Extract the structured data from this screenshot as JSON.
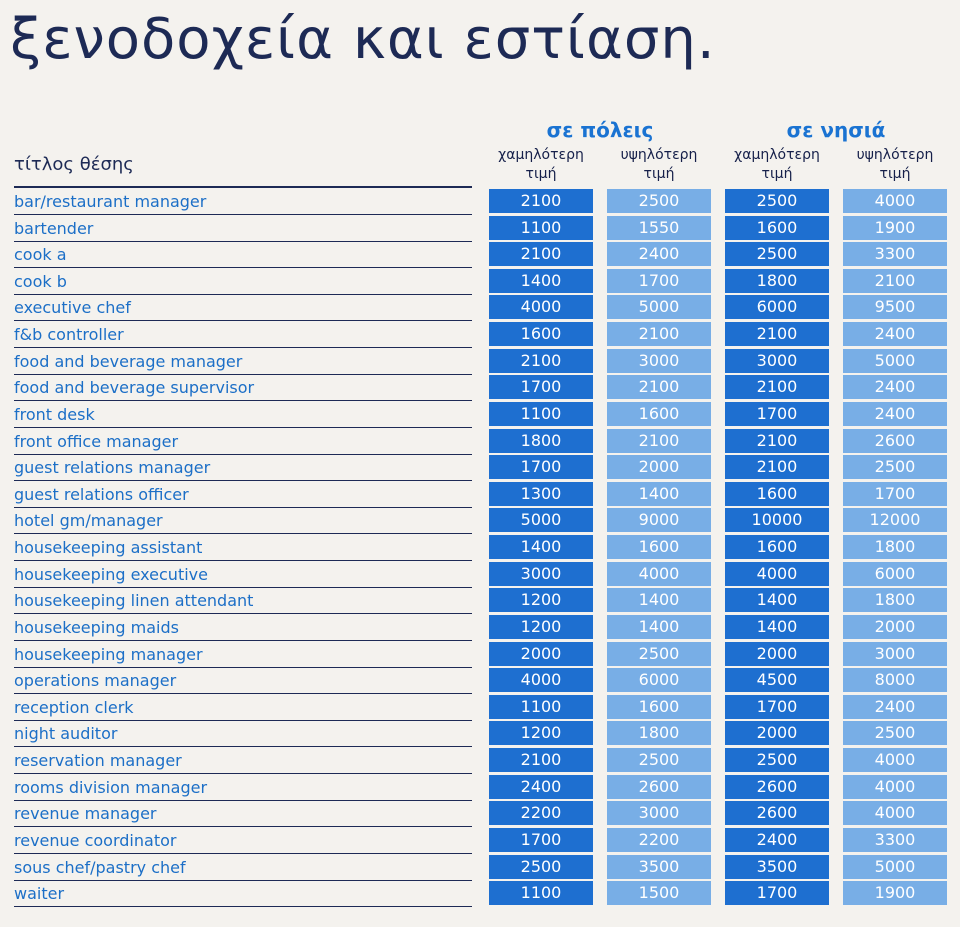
{
  "title": "ξενοδοχεία και εστίαση.",
  "table": {
    "label_header": "τίτλος θέσης",
    "groups": [
      {
        "label": "σε πόλεις"
      },
      {
        "label": "σε νησιά"
      }
    ],
    "columns": [
      {
        "line1": "χαμηλότερη",
        "line2": "τιμή"
      },
      {
        "line1": "υψηλότερη",
        "line2": "τιμή"
      },
      {
        "line1": "χαμηλότερη",
        "line2": "τιμή"
      },
      {
        "line1": "υψηλότερη",
        "line2": "τιμή"
      }
    ],
    "rows": [
      {
        "title": "bar/restaurant manager",
        "values": [
          "2100",
          "2500",
          "2500",
          "4000"
        ]
      },
      {
        "title": "bartender",
        "values": [
          "1100",
          "1550",
          "1600",
          "1900"
        ]
      },
      {
        "title": "cook a",
        "values": [
          "2100",
          "2400",
          "2500",
          "3300"
        ]
      },
      {
        "title": "cook b",
        "values": [
          "1400",
          "1700",
          "1800",
          "2100"
        ]
      },
      {
        "title": "executive chef",
        "values": [
          "4000",
          "5000",
          "6000",
          "9500"
        ]
      },
      {
        "title": "f&b controller",
        "values": [
          "1600",
          "2100",
          "2100",
          "2400"
        ]
      },
      {
        "title": "food and beverage manager",
        "values": [
          "2100",
          "3000",
          "3000",
          "5000"
        ]
      },
      {
        "title": "food and beverage supervisor",
        "values": [
          "1700",
          "2100",
          "2100",
          "2400"
        ]
      },
      {
        "title": "front desk",
        "values": [
          "1100",
          "1600",
          "1700",
          "2400"
        ]
      },
      {
        "title": "front office manager",
        "values": [
          "1800",
          "2100",
          "2100",
          "2600"
        ]
      },
      {
        "title": "guest relations manager",
        "values": [
          "1700",
          "2000",
          "2100",
          "2500"
        ]
      },
      {
        "title": "guest relations officer",
        "values": [
          "1300",
          "1400",
          "1600",
          "1700"
        ]
      },
      {
        "title": "hotel gm/manager",
        "values": [
          "5000",
          "9000",
          "10000",
          "12000"
        ]
      },
      {
        "title": "housekeeping assistant",
        "values": [
          "1400",
          "1600",
          "1600",
          "1800"
        ]
      },
      {
        "title": "housekeeping executive",
        "values": [
          "3000",
          "4000",
          "4000",
          "6000"
        ]
      },
      {
        "title": "housekeeping linen attendant",
        "values": [
          "1200",
          "1400",
          "1400",
          "1800"
        ]
      },
      {
        "title": "housekeeping maids",
        "values": [
          "1200",
          "1400",
          "1400",
          "2000"
        ]
      },
      {
        "title": "housekeeping manager",
        "values": [
          "2000",
          "2500",
          "2000",
          "3000"
        ]
      },
      {
        "title": "operations manager",
        "values": [
          "4000",
          "6000",
          "4500",
          "8000"
        ]
      },
      {
        "title": "reception clerk",
        "values": [
          "1100",
          "1600",
          "1700",
          "2400"
        ]
      },
      {
        "title": "night auditor",
        "values": [
          "1200",
          "1800",
          "2000",
          "2500"
        ]
      },
      {
        "title": "reservation manager",
        "values": [
          "2100",
          "2500",
          "2500",
          "4000"
        ]
      },
      {
        "title": "rooms division manager",
        "values": [
          "2400",
          "2600",
          "2600",
          "4000"
        ]
      },
      {
        "title": "revenue manager",
        "values": [
          "2200",
          "3000",
          "2600",
          "4000"
        ]
      },
      {
        "title": "revenue coordinator",
        "values": [
          "1700",
          "2200",
          "2400",
          "3300"
        ]
      },
      {
        "title": "sous chef/pastry chef",
        "values": [
          "2500",
          "3500",
          "3500",
          "5000"
        ]
      },
      {
        "title": "waiter",
        "values": [
          "1100",
          "1500",
          "1700",
          "1900"
        ]
      }
    ]
  },
  "colors": {
    "dark_cell": "#1e6fd0",
    "light_cell": "#78aee6",
    "label_text": "#1c6fc7",
    "heading": "#1d2a55",
    "group_heading": "#1a73d2"
  }
}
